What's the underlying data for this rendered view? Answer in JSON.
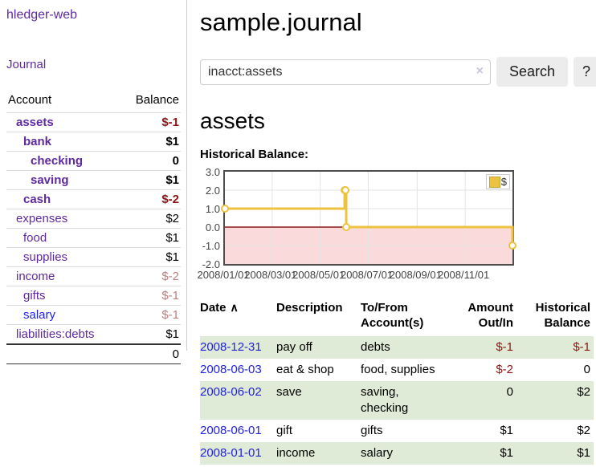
{
  "colors": {
    "link_purple": "#5f2a9e",
    "link_blue": "#2222dd",
    "negative_strong": "#8e1414",
    "negative_muted": "#bd7f7f",
    "row_stripe_green": "#e0ebd7",
    "series_yellow": "#edc240"
  },
  "sidebar": {
    "brand": "hledger-web",
    "journal_link": "Journal",
    "accounts_table": {
      "headers": [
        "Account",
        "Balance"
      ],
      "rows": [
        {
          "account": "assets",
          "balance": "$-1",
          "depth": 0,
          "bold": true,
          "balance_style": "neg-strong",
          "link_style": "purple"
        },
        {
          "account": "bank",
          "balance": "$1",
          "depth": 1,
          "bold": true,
          "balance_style": "plain",
          "link_style": "purple"
        },
        {
          "account": "checking",
          "balance": "0",
          "depth": 2,
          "bold": true,
          "balance_style": "plain",
          "link_style": "purple"
        },
        {
          "account": "saving",
          "balance": "$1",
          "depth": 2,
          "bold": true,
          "balance_style": "plain",
          "link_style": "purple"
        },
        {
          "account": "cash",
          "balance": "$-2",
          "depth": 1,
          "bold": true,
          "balance_style": "neg-strong",
          "link_style": "purple"
        },
        {
          "account": "expenses",
          "balance": "$2",
          "depth": 0,
          "bold": false,
          "balance_style": "plain",
          "link_style": "purple"
        },
        {
          "account": "food",
          "balance": "$1",
          "depth": 1,
          "bold": false,
          "balance_style": "plain",
          "link_style": "purple"
        },
        {
          "account": "supplies",
          "balance": "$1",
          "depth": 1,
          "bold": false,
          "balance_style": "plain",
          "link_style": "purple"
        },
        {
          "account": "income",
          "balance": "$-2",
          "depth": 0,
          "bold": false,
          "balance_style": "neg-muted",
          "link_style": "purple"
        },
        {
          "account": "gifts",
          "balance": "$-1",
          "depth": 1,
          "bold": false,
          "balance_style": "neg-muted",
          "link_style": "purple"
        },
        {
          "account": "salary",
          "balance": "$-1",
          "depth": 1,
          "bold": false,
          "balance_style": "neg-muted",
          "link_style": "blue"
        },
        {
          "account": "liabilities:debts",
          "balance": "$1",
          "depth": 0,
          "bold": false,
          "balance_style": "plain",
          "link_style": "purple"
        }
      ],
      "total": "0"
    }
  },
  "header": {
    "title": "sample.journal"
  },
  "search": {
    "value": "inacct:assets",
    "clear_icon": "×",
    "search_button": "Search",
    "help_button": "?"
  },
  "account_page": {
    "heading": "assets",
    "chart_label": "Historical Balance:"
  },
  "chart_data": {
    "type": "line",
    "title": "Historical Balance:",
    "step": true,
    "marker": "open-circle",
    "x_dates": [
      "2008-01-01",
      "2008-06-01",
      "2008-06-02",
      "2008-06-03",
      "2008-12-31"
    ],
    "x_days": [
      0,
      152,
      153,
      154,
      365
    ],
    "series": [
      {
        "name": "$",
        "color": "#edc240",
        "values": [
          1,
          2,
          2,
          0,
          -1
        ]
      }
    ],
    "xlim_days": [
      0,
      365
    ],
    "ylim": [
      -2,
      3
    ],
    "y_ticks": [
      "3.0",
      "2.0",
      "1.0",
      "0.0",
      "-1.0",
      "-2.0"
    ],
    "x_ticks": [
      {
        "day": 0,
        "label": "2008/01/01"
      },
      {
        "day": 60,
        "label": "2008/03/01"
      },
      {
        "day": 121,
        "label": "2008/05/01"
      },
      {
        "day": 182,
        "label": "2008/07/01"
      },
      {
        "day": 244,
        "label": "2008/09/01"
      },
      {
        "day": 305,
        "label": "2008/11/01"
      }
    ],
    "grid": true,
    "gridline_color": "#e3e3e3",
    "zero_line_color": "#8b1a1a",
    "negative_region_color": "#fadada",
    "plot_border_color": "#4d4d4d",
    "legend": {
      "label": "$",
      "position": "top-right"
    }
  },
  "register_table": {
    "headers": [
      {
        "label": "Date",
        "align": "left",
        "sort_icon": "∧",
        "key": "date"
      },
      {
        "label": "Description",
        "align": "left",
        "key": "description"
      },
      {
        "label": "To/From\nAccount(s)",
        "align": "left",
        "key": "accounts"
      },
      {
        "label": "Amount\nOut/In",
        "align": "right",
        "key": "amount"
      },
      {
        "label": "Historical\nBalance",
        "align": "right",
        "key": "balance"
      }
    ],
    "rows": [
      {
        "date": "2008-12-31",
        "description": "pay off",
        "accounts": "debts",
        "amount": "$-1",
        "balance": "$-1",
        "amount_negative": true,
        "balance_negative": true
      },
      {
        "date": "2008-06-03",
        "description": "eat & shop",
        "accounts": "food, supplies",
        "amount": "$-2",
        "balance": "0",
        "amount_negative": true,
        "balance_negative": false
      },
      {
        "date": "2008-06-02",
        "description": "save",
        "accounts": "saving,\nchecking",
        "amount": "0",
        "balance": "$2",
        "amount_negative": false,
        "balance_negative": false
      },
      {
        "date": "2008-06-01",
        "description": "gift",
        "accounts": "gifts",
        "amount": "$1",
        "balance": "$2",
        "amount_negative": false,
        "balance_negative": false
      },
      {
        "date": "2008-01-01",
        "description": "income",
        "accounts": "salary",
        "amount": "$1",
        "balance": "$1",
        "amount_negative": false,
        "balance_negative": false
      }
    ]
  }
}
